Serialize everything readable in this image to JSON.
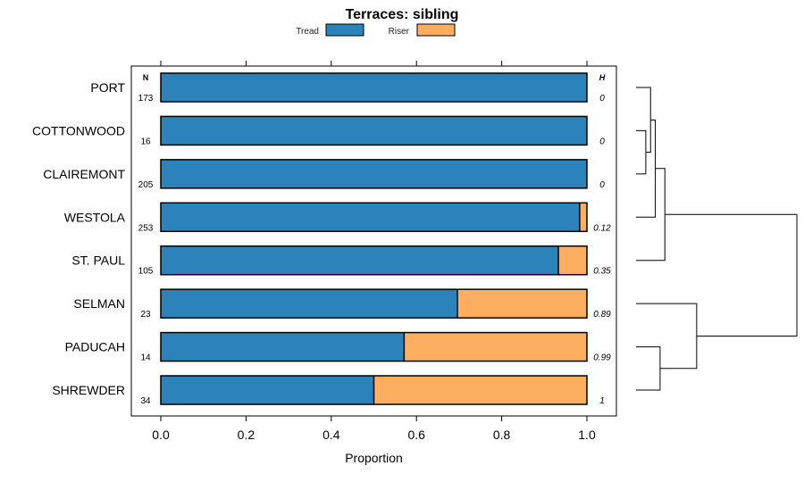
{
  "chart_data": {
    "type": "bar",
    "stacked": true,
    "orientation": "horizontal",
    "title": "Terraces: sibling",
    "xlabel": "Proportion",
    "xlim": [
      0,
      1
    ],
    "xticks": [
      0,
      0.2,
      0.4,
      0.6,
      0.8,
      1
    ],
    "xtick_labels": [
      "0.0",
      "0.2",
      "0.4",
      "0.6",
      "0.8",
      "1.0"
    ],
    "legend": {
      "position": "top",
      "entries": [
        {
          "name": "Tread",
          "color": "#2c83ba"
        },
        {
          "name": "Riser",
          "color": "#fdae61"
        }
      ]
    },
    "n_header": "N",
    "h_header": "H",
    "categories": [
      "PORT",
      "COTTONWOOD",
      "CLAIREMONT",
      "WESTOLA",
      "ST. PAUL",
      "SELMAN",
      "PADUCAH",
      "SHREWDER"
    ],
    "n_values": [
      "173",
      "16",
      "205",
      "253",
      "105",
      "23",
      "14",
      "34"
    ],
    "h_values": [
      "0",
      "0",
      "0",
      "0.12",
      "0.35",
      "0.89",
      "0.99",
      "1"
    ],
    "series": [
      {
        "name": "Tread",
        "values": [
          1.0,
          1.0,
          1.0,
          0.983,
          0.933,
          0.696,
          0.571,
          0.5
        ]
      },
      {
        "name": "Riser",
        "values": [
          0.0,
          0.0,
          0.0,
          0.017,
          0.067,
          0.304,
          0.429,
          0.5
        ]
      }
    ],
    "dendrogram": {
      "description": "hierarchical clustering of rows, drawn to the right of the panel",
      "merges": [
        {
          "left": "COTTONWOOD",
          "right": "CLAIREMONT",
          "height": 0.05
        },
        {
          "left": "PORT",
          "right": "COTTONWOOD+CLAIREMONT",
          "height": 0.08
        },
        {
          "left": "PORT+COTTONWOOD+CLAIREMONT",
          "right": "WESTOLA",
          "height": 0.11
        },
        {
          "left": "PORT..WESTOLA",
          "right": "ST. PAUL",
          "height": 0.17
        },
        {
          "left": "PADUCAH",
          "right": "SHREWDER",
          "height": 0.14
        },
        {
          "left": "SELMAN",
          "right": "PADUCAH+SHREWDER",
          "height": 0.37
        },
        {
          "left": "PORT..ST. PAUL",
          "right": "SELMAN..SHREWDER",
          "height": 1.0
        }
      ]
    }
  }
}
